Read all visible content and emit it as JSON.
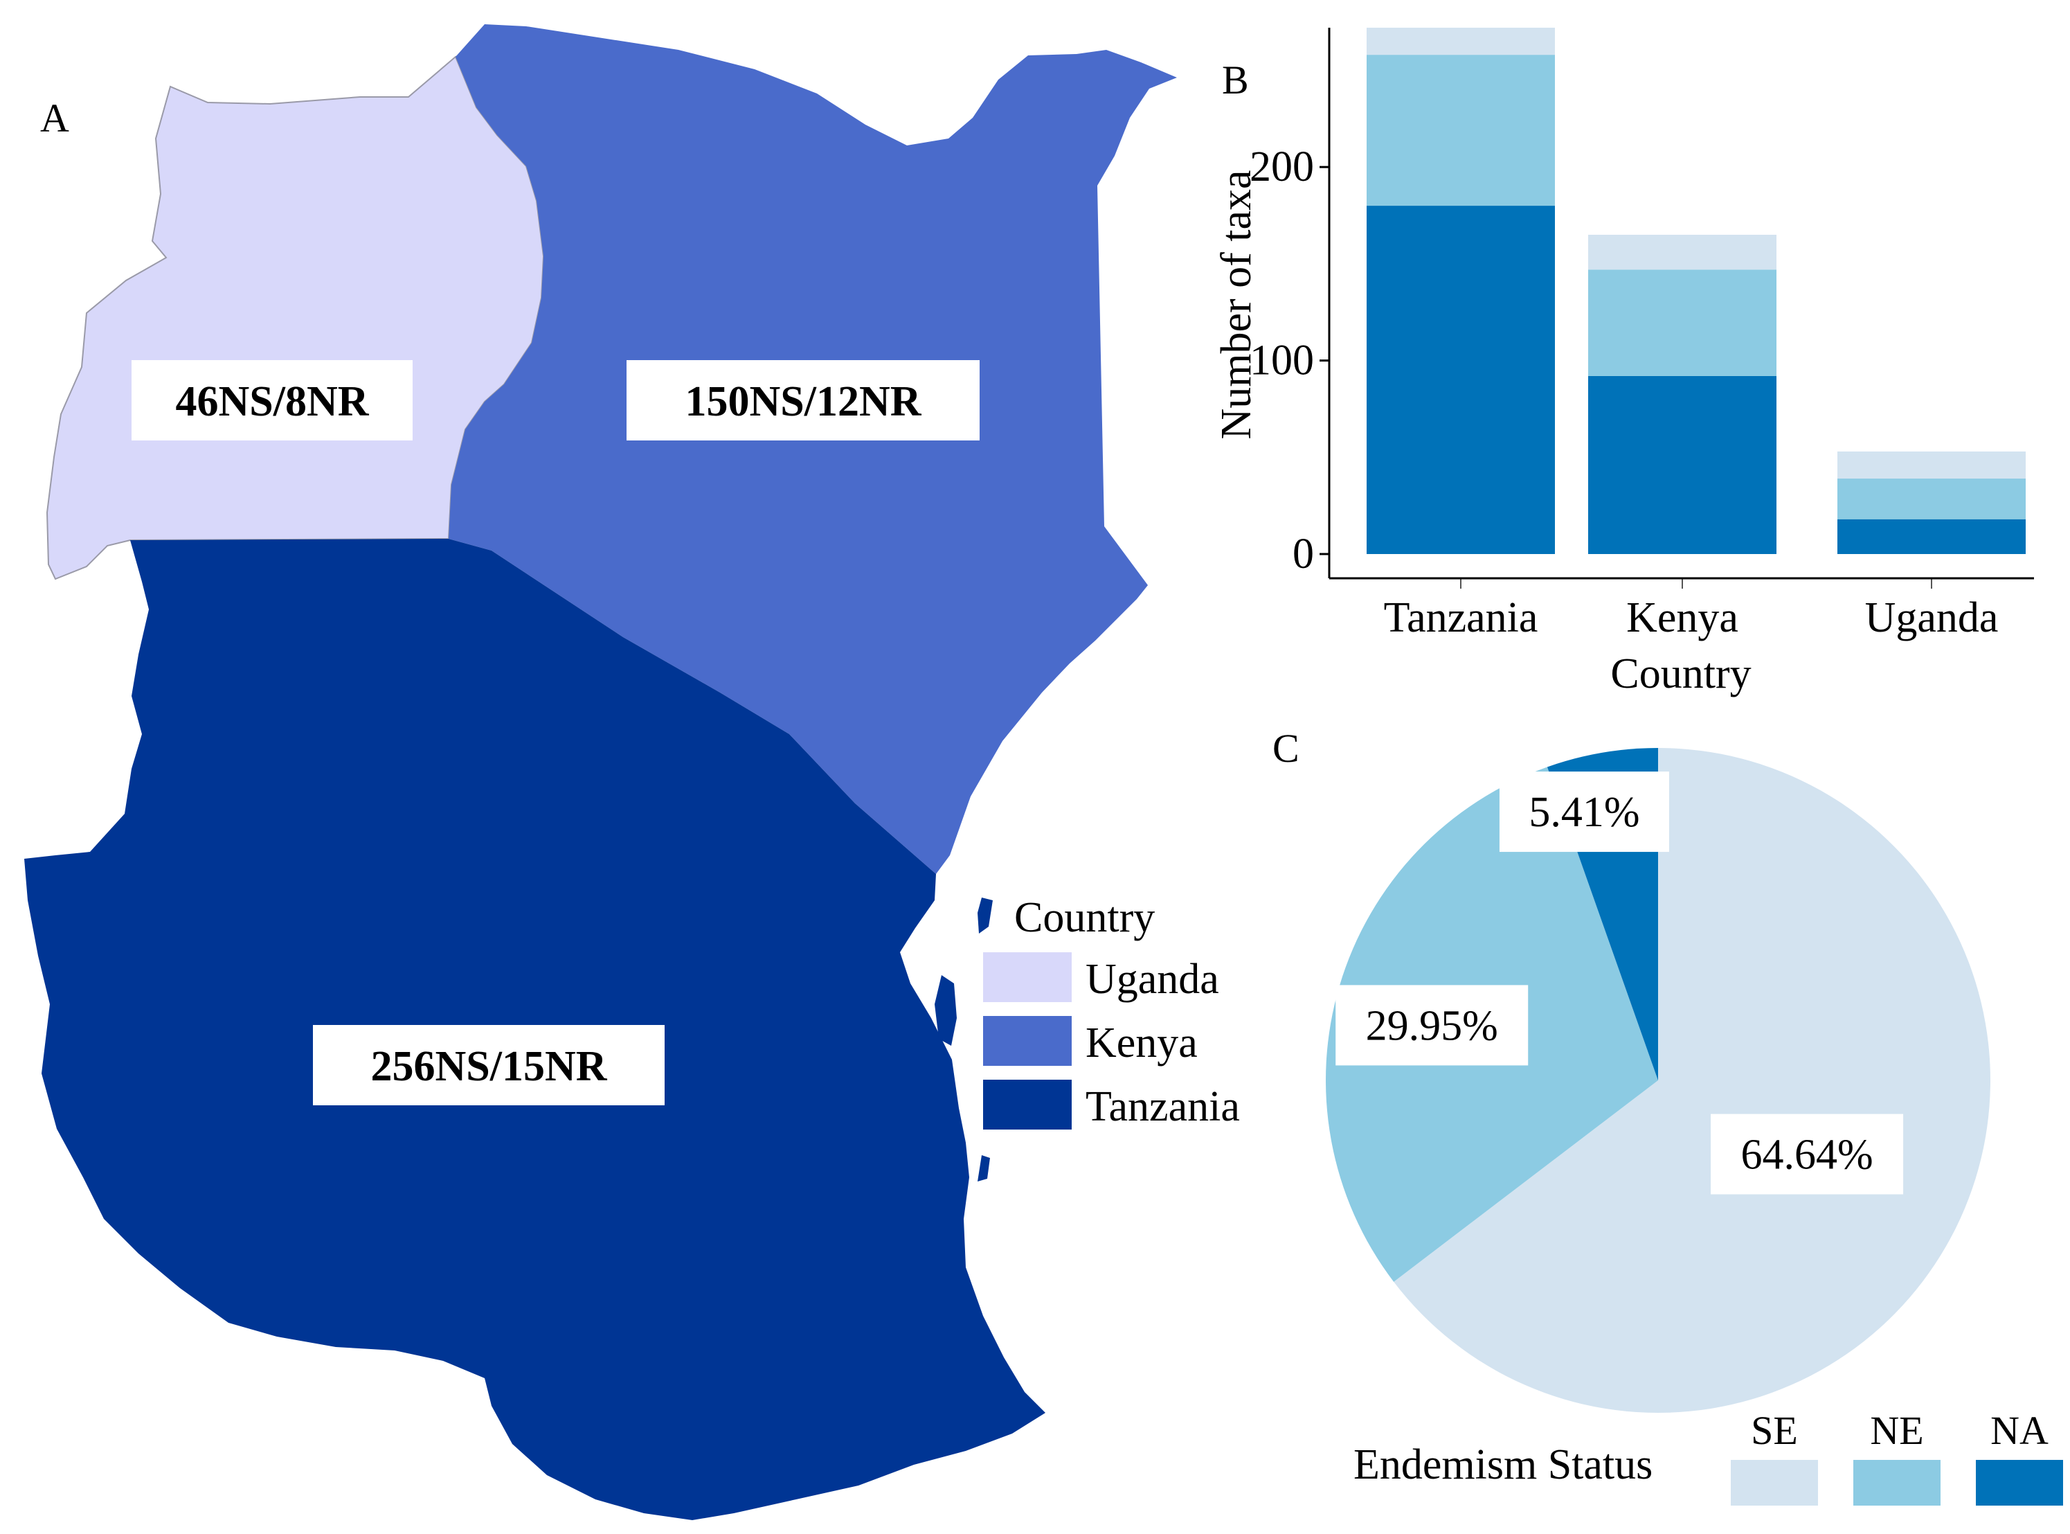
{
  "panels": {
    "a": "A",
    "b": "B",
    "c": "C"
  },
  "map": {
    "countries": [
      {
        "name": "Uganda",
        "label": "46NS/8NR",
        "color": "#d8d8fa"
      },
      {
        "name": "Kenya",
        "label": "150NS/12NR",
        "color": "#4a6bcb"
      },
      {
        "name": "Tanzania",
        "label": "256NS/15NR",
        "color": "#003594"
      }
    ],
    "legend": {
      "title": "Country",
      "items": [
        {
          "label": "Uganda",
          "color": "#d8d8fa"
        },
        {
          "label": "Kenya",
          "color": "#4a6bcb"
        },
        {
          "label": "Tanzania",
          "color": "#003594"
        }
      ]
    }
  },
  "chart_data": [
    {
      "type": "bar",
      "stacked": true,
      "title": "",
      "xlabel": "Country",
      "ylabel": "Number of taxa",
      "categories": [
        "Tanzania",
        "Kenya",
        "Uganda"
      ],
      "ylim": [
        0,
        272
      ],
      "yticks": [
        0,
        100,
        200
      ],
      "series": [
        {
          "name": "NA",
          "color": "#0072b8",
          "values": [
            180,
            92,
            18
          ]
        },
        {
          "name": "NE",
          "color": "#8ccbe3",
          "values": [
            78,
            55,
            21
          ]
        },
        {
          "name": "SE",
          "color": "#d3e3f0",
          "values": [
            14,
            18,
            14
          ]
        }
      ]
    },
    {
      "type": "pie",
      "title": "",
      "slices": [
        {
          "name": "SE",
          "value": 64.64,
          "label": "64.64%",
          "color": "#d3e3f0"
        },
        {
          "name": "NE",
          "value": 29.95,
          "label": "29.95%",
          "color": "#8ccbe3"
        },
        {
          "name": "NA",
          "value": 5.41,
          "label": "5.41%",
          "color": "#0072b8"
        }
      ],
      "legend": {
        "title": "Endemism Status",
        "items": [
          {
            "label": "SE",
            "color": "#d3e3f0"
          },
          {
            "label": "NE",
            "color": "#8ccbe3"
          },
          {
            "label": "NA",
            "color": "#0072b8"
          }
        ]
      }
    }
  ]
}
